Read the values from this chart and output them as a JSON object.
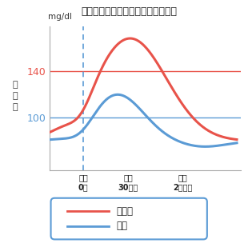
{
  "title": "食後の血糖上昇パターンのイメージ",
  "ylabel_unit": "mg/dl",
  "ylabel_text": "血\n糖\n値",
  "ytick_100": "100",
  "ytick_140": "140",
  "hline_100_color": "#5b9bd5",
  "hline_140_color": "#e8534a",
  "dashed_line_color": "#5b9bd5",
  "red_line_color": "#e8534a",
  "blue_line_color": "#5b9bd5",
  "legend_label_red": "過血糖",
  "legend_label_blue": "正常",
  "xtick_labels": [
    "食後\n0分",
    "食後\n30分後",
    "食後\n2時間後"
  ],
  "bg_color": "#ffffff",
  "border_color": "#5b9bd5"
}
